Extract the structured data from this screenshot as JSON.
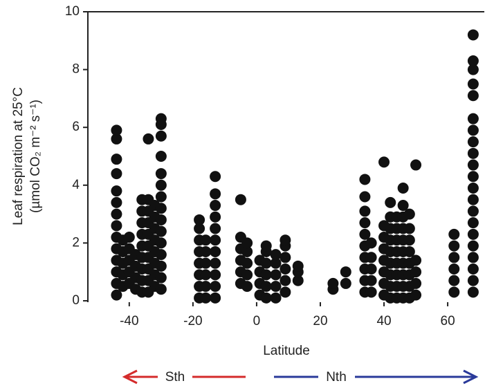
{
  "chart_data": {
    "type": "scatter",
    "ylabel": [
      "Leaf respiration at 25°C",
      "(µmol CO₂ m⁻² s⁻¹)"
    ],
    "xlabel": "Latitude",
    "annotations": {
      "south": "Sth",
      "north": "Nth"
    },
    "color": "#111111",
    "xlim": [
      -53,
      71.5
    ],
    "ylim": [
      0,
      10
    ],
    "xticks": [
      -40,
      -20,
      0,
      20,
      40,
      60
    ],
    "yticks": [
      0,
      2,
      4,
      6,
      8,
      10
    ],
    "x": [
      -44,
      -44,
      -44,
      -44,
      -44,
      -44,
      -44,
      -44,
      -44,
      -44,
      -44,
      -44,
      -44,
      -44,
      -42,
      -42,
      -42,
      -42,
      -42,
      -40,
      -40,
      -40,
      -40,
      -40,
      -38,
      -38,
      -38,
      -38,
      -36,
      -36,
      -36,
      -36,
      -36,
      -36,
      -36,
      -36,
      -36,
      -34,
      -34,
      -34,
      -34,
      -34,
      -34,
      -34,
      -34,
      -34,
      -34,
      -32,
      -32,
      -32,
      -32,
      -32,
      -32,
      -32,
      -32,
      -30,
      -30,
      -30,
      -30,
      -30,
      -30,
      -30,
      -30,
      -30,
      -30,
      -30,
      -30,
      -30,
      -30,
      -30,
      -18,
      -18,
      -18,
      -18,
      -18,
      -18,
      -18,
      -18,
      -16,
      -16,
      -16,
      -16,
      -16,
      -16,
      -13,
      -13,
      -13,
      -13,
      -13,
      -13,
      -13,
      -13,
      -13,
      -13,
      -13,
      -5,
      -5,
      -5,
      -5,
      -5,
      -5,
      -3,
      -3,
      -3,
      -3,
      -3,
      1,
      1,
      1,
      1,
      3,
      3,
      3,
      3,
      3,
      3,
      6,
      6,
      6,
      6,
      6,
      9,
      9,
      9,
      9,
      9,
      9,
      13,
      13,
      13,
      24,
      24,
      28,
      28,
      34,
      34,
      34,
      34,
      34,
      34,
      34,
      34,
      34,
      34,
      36,
      36,
      36,
      36,
      36,
      40,
      40,
      40,
      40,
      40,
      40,
      40,
      40,
      42,
      42,
      42,
      42,
      42,
      42,
      42,
      42,
      42,
      44,
      44,
      44,
      44,
      44,
      44,
      44,
      44,
      46,
      46,
      46,
      46,
      46,
      46,
      46,
      46,
      46,
      46,
      48,
      48,
      48,
      48,
      48,
      48,
      48,
      48,
      50,
      50,
      50,
      50,
      50,
      62,
      62,
      62,
      62,
      62,
      62,
      68,
      68,
      68,
      68,
      68,
      68,
      68,
      68,
      68,
      68,
      68,
      68,
      68,
      68,
      68,
      68,
      68,
      68,
      68,
      68,
      68
    ],
    "y": [
      0.2,
      0.6,
      1.0,
      1.4,
      1.8,
      2.2,
      2.6,
      3.0,
      3.4,
      3.8,
      4.4,
      4.9,
      5.6,
      5.9,
      0.5,
      0.9,
      1.3,
      1.7,
      2.1,
      0.6,
      1.0,
      1.4,
      1.8,
      2.2,
      0.4,
      0.8,
      1.2,
      1.6,
      0.3,
      0.7,
      1.1,
      1.5,
      1.9,
      2.3,
      2.7,
      3.1,
      3.5,
      0.3,
      0.7,
      1.1,
      1.5,
      1.9,
      2.3,
      2.7,
      3.1,
      3.5,
      5.6,
      0.5,
      0.9,
      1.3,
      1.7,
      2.1,
      2.5,
      2.9,
      3.3,
      0.4,
      0.8,
      1.2,
      1.6,
      2.0,
      2.4,
      2.8,
      3.2,
      3.6,
      4.0,
      4.4,
      5.0,
      5.7,
      6.1,
      6.3,
      0.1,
      0.5,
      0.9,
      1.3,
      1.7,
      2.1,
      2.5,
      2.8,
      0.1,
      0.5,
      0.9,
      1.3,
      1.7,
      2.1,
      0.1,
      0.5,
      0.9,
      1.3,
      1.7,
      2.1,
      2.5,
      2.9,
      3.3,
      3.7,
      4.3,
      0.6,
      1.0,
      1.4,
      1.8,
      2.2,
      3.5,
      0.5,
      0.9,
      1.3,
      1.7,
      2.0,
      0.2,
      0.6,
      1.0,
      1.4,
      0.1,
      0.5,
      0.9,
      1.3,
      1.7,
      1.9,
      0.1,
      0.5,
      0.9,
      1.3,
      1.6,
      0.3,
      0.7,
      1.1,
      1.5,
      1.9,
      2.1,
      0.7,
      1.0,
      1.2,
      0.4,
      0.6,
      0.6,
      1.0,
      0.3,
      0.7,
      1.1,
      1.5,
      1.9,
      2.3,
      2.7,
      3.1,
      3.6,
      4.2,
      0.3,
      0.7,
      1.1,
      1.5,
      2.0,
      0.2,
      0.6,
      1.0,
      1.4,
      1.8,
      2.2,
      2.6,
      4.8,
      0.1,
      0.5,
      0.9,
      1.3,
      1.7,
      2.1,
      2.5,
      2.9,
      3.4,
      0.1,
      0.5,
      0.9,
      1.3,
      1.7,
      2.1,
      2.5,
      2.9,
      0.1,
      0.5,
      0.9,
      1.3,
      1.7,
      2.1,
      2.5,
      2.9,
      3.3,
      3.9,
      0.1,
      0.5,
      0.9,
      1.3,
      1.7,
      2.1,
      2.5,
      3.0,
      0.2,
      0.6,
      1.0,
      1.4,
      4.7,
      0.3,
      0.7,
      1.1,
      1.5,
      1.9,
      2.3,
      0.3,
      0.7,
      1.1,
      1.5,
      1.9,
      2.3,
      2.7,
      3.1,
      3.5,
      3.9,
      4.3,
      4.7,
      5.1,
      5.5,
      5.9,
      6.3,
      7.1,
      7.5,
      8.0,
      8.3,
      9.2
    ]
  }
}
